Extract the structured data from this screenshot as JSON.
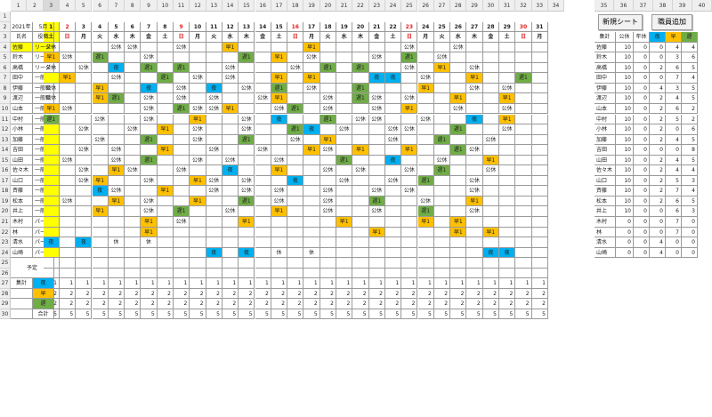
{
  "sheet": {
    "column_numbers": [
      "1",
      "2",
      "3",
      "4",
      "5",
      "6",
      "7",
      "8",
      "9",
      "10",
      "11",
      "12",
      "13",
      "14",
      "15",
      "16",
      "17",
      "18",
      "19",
      "20",
      "21",
      "22",
      "23",
      "24",
      "25",
      "26",
      "27",
      "28",
      "29",
      "30",
      "31",
      "32",
      "33",
      "34",
      "35",
      "36",
      "37",
      "38",
      "39",
      "40"
    ],
    "row_numbers": [
      "1",
      "2",
      "3",
      "4",
      "5",
      "6",
      "7",
      "8",
      "9",
      "10",
      "11",
      "12",
      "13",
      "14",
      "15",
      "16",
      "17",
      "18",
      "19",
      "20",
      "21",
      "22",
      "23",
      "24",
      "25",
      "26",
      "27",
      "28",
      "29",
      "30"
    ]
  },
  "buttons": {
    "new_sheet": "新規シート",
    "add_staff": "職員追加"
  },
  "header": {
    "year": "2021年",
    "month": "5月",
    "role_label": "役職",
    "name_label": "氏名",
    "days": [
      "1",
      "2",
      "3",
      "4",
      "5",
      "6",
      "7",
      "8",
      "9",
      "10",
      "11",
      "12",
      "13",
      "14",
      "15",
      "16",
      "17",
      "18",
      "19",
      "20",
      "21",
      "22",
      "23",
      "24",
      "25",
      "26",
      "27",
      "28",
      "29",
      "30",
      "31"
    ],
    "weekdays": [
      "土",
      "日",
      "月",
      "火",
      "水",
      "木",
      "金",
      "土",
      "日",
      "月",
      "火",
      "水",
      "木",
      "金",
      "土",
      "日",
      "月",
      "火",
      "水",
      "木",
      "金",
      "土",
      "日",
      "月",
      "火",
      "水",
      "木",
      "金",
      "土",
      "日",
      "月"
    ]
  },
  "staff": [
    {
      "name": "佐藤",
      "role": "リーダー"
    },
    {
      "name": "鈴木",
      "role": "リーダー"
    },
    {
      "name": "高橋",
      "role": "リーダー"
    },
    {
      "name": "田中",
      "role": "一般職"
    },
    {
      "name": "伊藤",
      "role": "一般職"
    },
    {
      "name": "渡辺",
      "role": "一般職"
    },
    {
      "name": "山本",
      "role": "一般職"
    },
    {
      "name": "中村",
      "role": "一般職"
    },
    {
      "name": "小林",
      "role": "一般職"
    },
    {
      "name": "加藤",
      "role": "一般職"
    },
    {
      "name": "吉田",
      "role": "一般職"
    },
    {
      "name": "山田",
      "role": "一般職"
    },
    {
      "name": "佐々木",
      "role": "一般職"
    },
    {
      "name": "山口",
      "role": "一般職"
    },
    {
      "name": "斉藤",
      "role": "一般職"
    },
    {
      "name": "松本",
      "role": "一般職"
    },
    {
      "name": "井上",
      "role": "一般職"
    },
    {
      "name": "木村",
      "role": "パート"
    },
    {
      "name": "林",
      "role": "パート"
    },
    {
      "name": "清水",
      "role": "パート"
    },
    {
      "name": "山崎",
      "role": "パート"
    }
  ],
  "shift_legend": {
    "off": "公休",
    "early": "早1",
    "late": "遅1",
    "night": "夜",
    "paid": "休"
  },
  "colors": {
    "early": "#ffc000",
    "night": "#00b0f0",
    "late": "#70ad47",
    "selected": "#ffff00",
    "holiday_text": "#e02020"
  },
  "schedule": [
    "O...OO..O..E....E.....O..O....",
    "EO.L..O.....L.E.O...O.L.O.....",
    "O.O.N.L.L..O...O.L.L..O.E.O..",
    ".E..O..L.O.O..E.E...NN.O..E..L",
    "O..E..N.O.N.O.L.O..L...E..O.O",
    "O..EL.O.O.O..OE..O.LO.O..E..E",
    "EO....O.LOOE..OL.O..O.E..O..O",
    "L..O..O..E..O.N..L.OO..O..N.E",
    "..O..O.E.O..O..LN.O..OO..L..O",
    "...O..L..O..L..O.E...O..L..O.",
    "..O.O..E..O..O..EO.E..E..LO..",
    ".O..O.L..O.O..O...L..N..O..E.",
    "..O.EO..O..N..E..O.O..O.L..O.",
    "..OE..O..EO.O..N..O..O.L..O..",
    "...NO..E..O.O.O..O..O.O...O..",
    ".O..E.O..E..L.O..O..L..O..E..",
    "...E..O.L..O..E..O..O..L..O..",
    "......E.O...E.....E....E.E....",
    "......E.............E....E.E..",
    "N N P P.......................",
    "..........N N P P..........NN."
  ],
  "side_summary": {
    "headers": [
      "集計",
      "公休",
      "年休",
      "夜",
      "早",
      "遅"
    ],
    "rows": [
      [
        "佐藤",
        "10",
        "0",
        "0",
        "4",
        "4"
      ],
      [
        "鈴木",
        "10",
        "0",
        "0",
        "3",
        "6"
      ],
      [
        "高橋",
        "10",
        "0",
        "2",
        "6",
        "5"
      ],
      [
        "田中",
        "10",
        "0",
        "0",
        "7",
        "4"
      ],
      [
        "伊藤",
        "10",
        "0",
        "4",
        "3",
        "5"
      ],
      [
        "渡辺",
        "10",
        "0",
        "2",
        "4",
        "5"
      ],
      [
        "山本",
        "10",
        "0",
        "2",
        "6",
        "2"
      ],
      [
        "中村",
        "10",
        "0",
        "2",
        "5",
        "2"
      ],
      [
        "小林",
        "10",
        "0",
        "2",
        "0",
        "6"
      ],
      [
        "加藤",
        "10",
        "0",
        "2",
        "4",
        "5"
      ],
      [
        "吉田",
        "10",
        "0",
        "0",
        "0",
        "8"
      ],
      [
        "山田",
        "10",
        "0",
        "2",
        "4",
        "5"
      ],
      [
        "佐々木",
        "10",
        "0",
        "2",
        "4",
        "4"
      ],
      [
        "山口",
        "10",
        "0",
        "2",
        "5",
        "3"
      ],
      [
        "斉藤",
        "10",
        "0",
        "2",
        "7",
        "4"
      ],
      [
        "松本",
        "10",
        "0",
        "2",
        "6",
        "5"
      ],
      [
        "井上",
        "10",
        "0",
        "0",
        "6",
        "3"
      ],
      [
        "木村",
        "0",
        "0",
        "0",
        "7",
        "0"
      ],
      [
        "林",
        "0",
        "0",
        "0",
        "7",
        "0"
      ],
      [
        "清水",
        "0",
        "0",
        "4",
        "0",
        "0"
      ],
      [
        "山崎",
        "0",
        "0",
        "4",
        "0",
        "0"
      ]
    ]
  },
  "memo_label": "予定",
  "totals": {
    "label": "集計",
    "total_label": "合計",
    "rows": [
      {
        "label": "夜",
        "color": "#00b0f0",
        "value": "1"
      },
      {
        "label": "早",
        "color": "#ffc000",
        "value": "2"
      },
      {
        "label": "遅",
        "color": "#70ad47",
        "value": "2"
      },
      {
        "label": "合計",
        "color": "",
        "value": "5"
      }
    ]
  }
}
